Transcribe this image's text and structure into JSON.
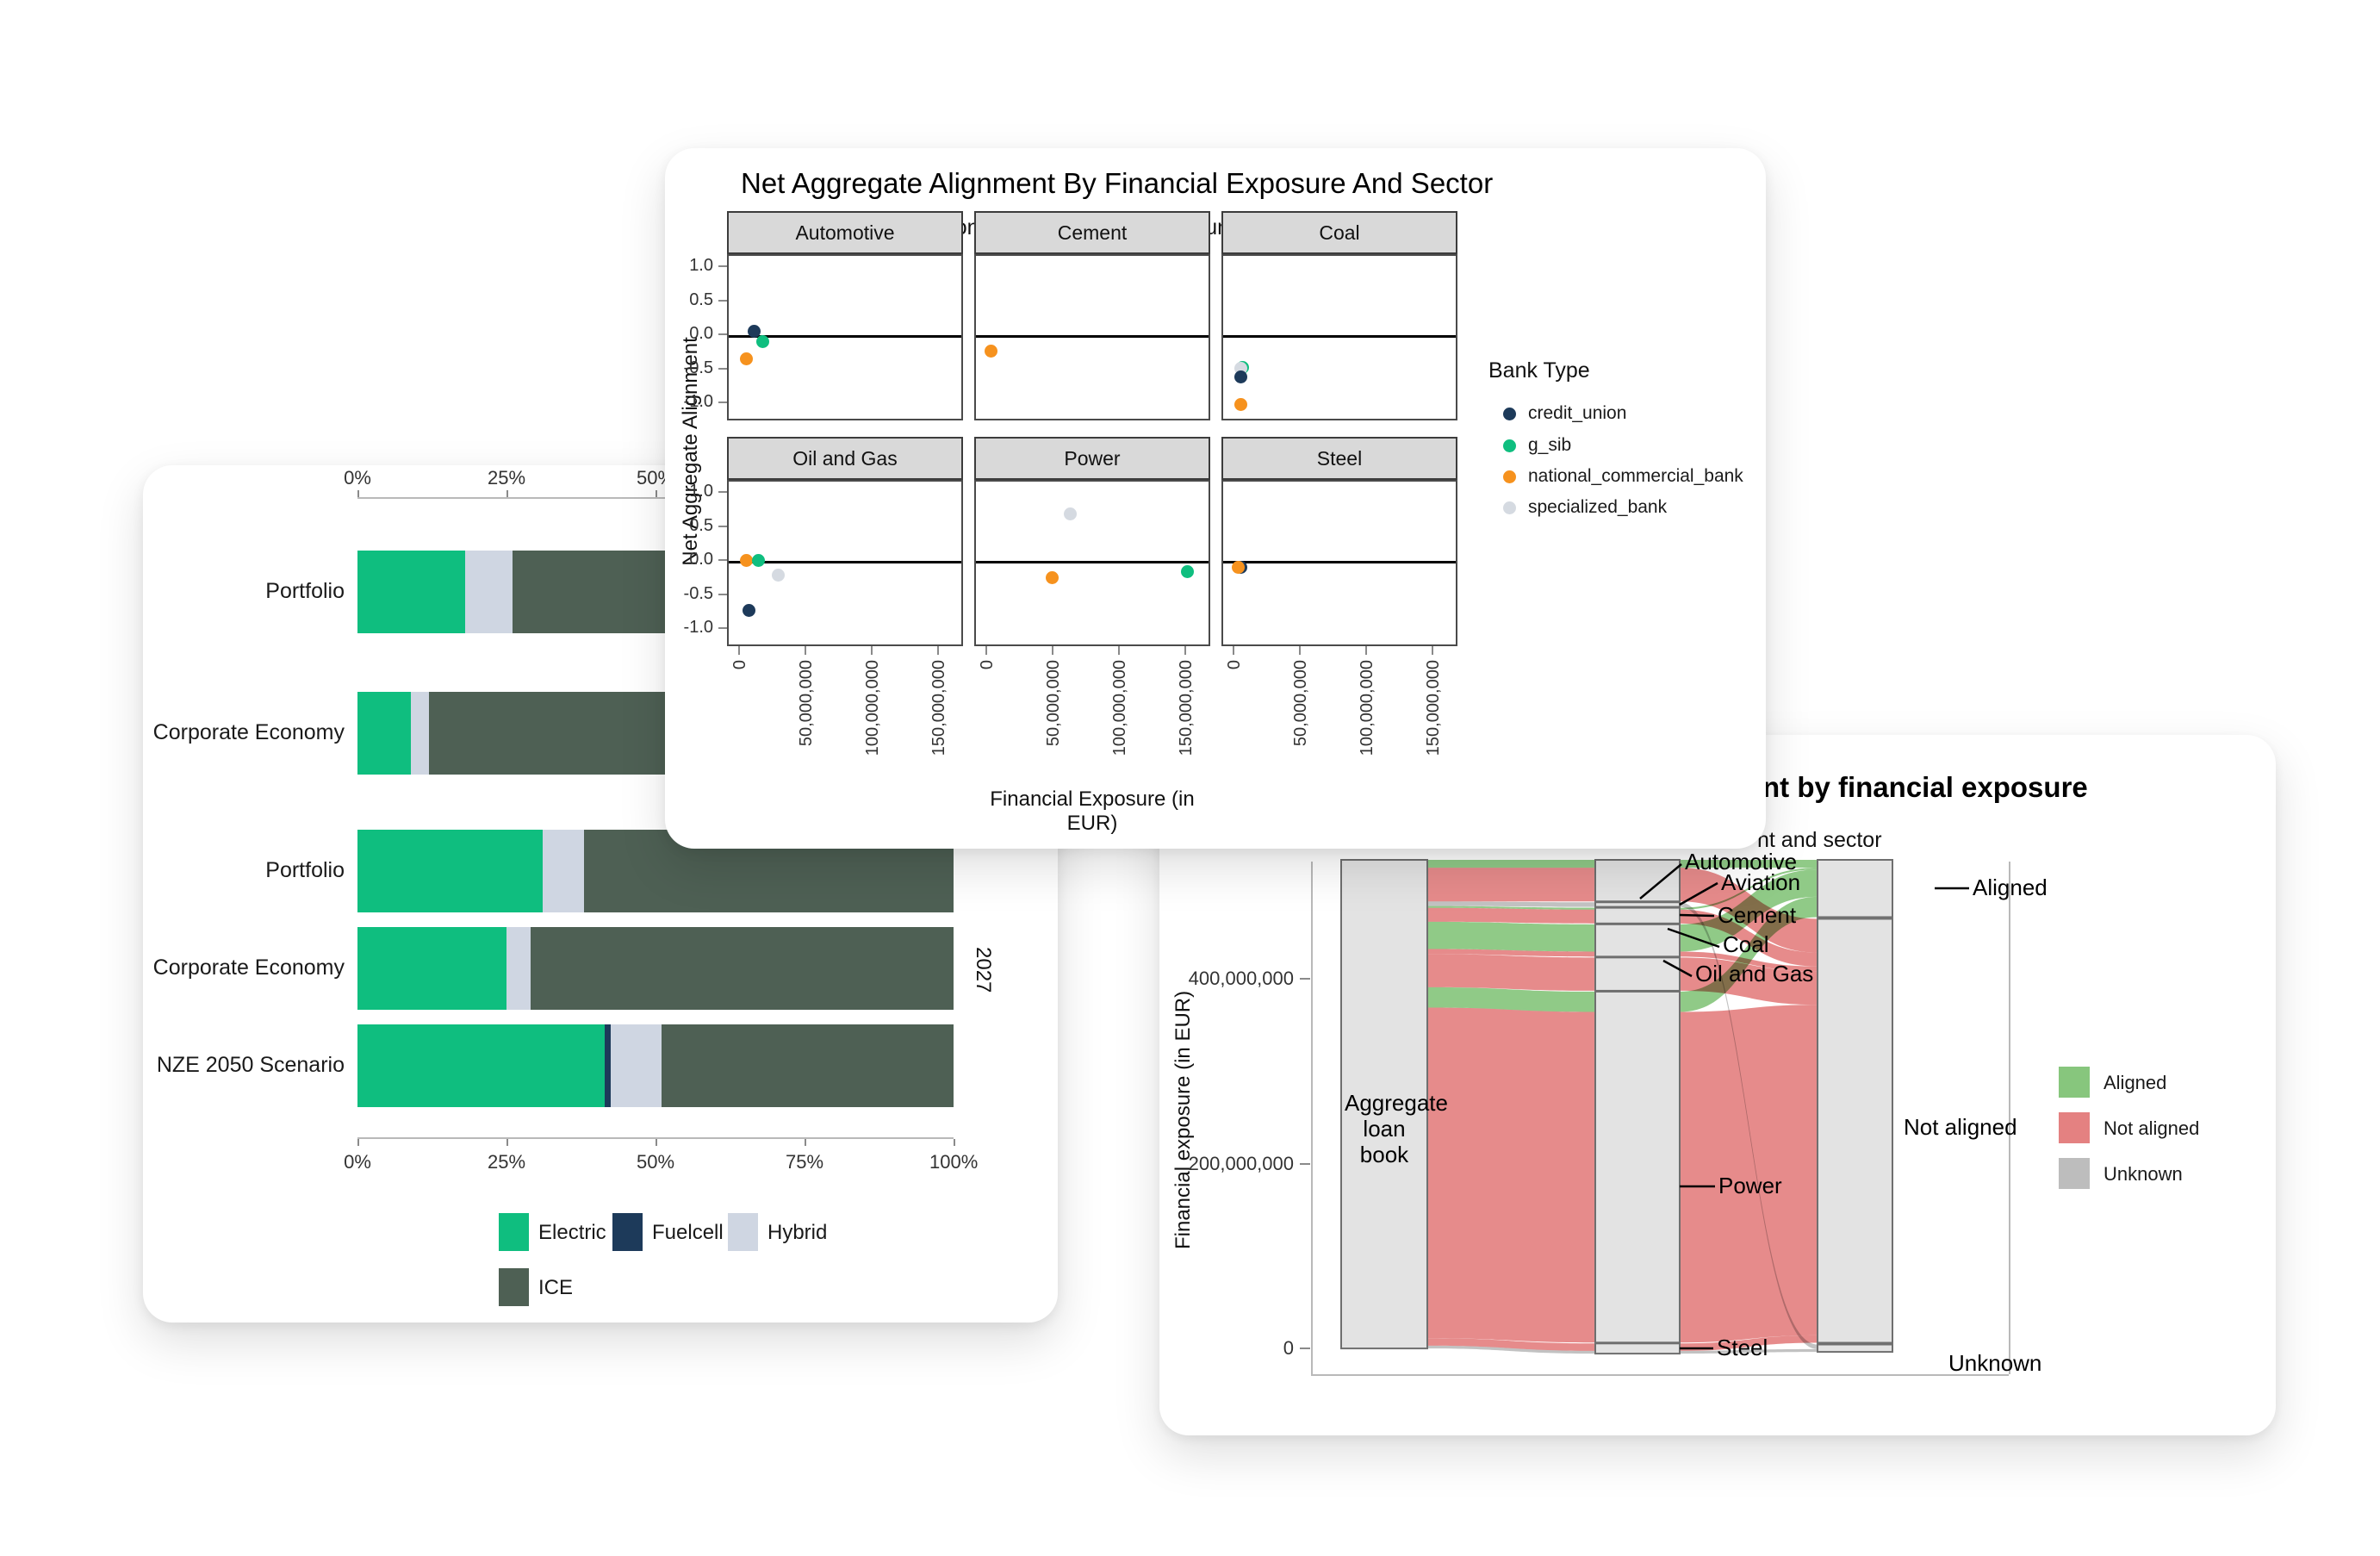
{
  "accent_colors": {
    "electric_green": "#0FBE7F",
    "fuelcell_navy": "#1D3A5A",
    "hybrid_gray": "#CFD6E2",
    "ice_darkgreen": "#4E6054",
    "orange": "#F6921E",
    "specialized_gray": "#D5DAE1",
    "sankey_green": "#87C67D",
    "sankey_red": "#E48181",
    "sankey_gray": "#BDBDBD",
    "node_fill": "#E3E3E3",
    "node_stroke": "#6F6F6F",
    "strip_bg": "#D9D9D9"
  },
  "chart_data": [
    {
      "type": "bar",
      "orientation": "horizontal-stacked",
      "x_ticks": [
        "0%",
        "25%",
        "50%",
        "75%",
        "100%"
      ],
      "xlim": [
        0,
        100
      ],
      "groups": [
        {
          "year": "",
          "rows": [
            {
              "label": "Portfolio",
              "segments": [
                {
                  "name": "Electric",
                  "value": 18
                },
                {
                  "name": "Hybrid",
                  "value": 8
                },
                {
                  "name": "ICE",
                  "value": 74
                }
              ]
            },
            {
              "label": "Corporate Economy",
              "segments": [
                {
                  "name": "Electric",
                  "value": 9
                },
                {
                  "name": "Hybrid",
                  "value": 3
                },
                {
                  "name": "ICE",
                  "value": 88
                }
              ]
            }
          ]
        },
        {
          "year": "2027",
          "rows": [
            {
              "label": "Portfolio",
              "segments": [
                {
                  "name": "Electric",
                  "value": 31
                },
                {
                  "name": "Hybrid",
                  "value": 7
                },
                {
                  "name": "ICE",
                  "value": 62
                }
              ]
            },
            {
              "label": "Corporate Economy",
              "segments": [
                {
                  "name": "Electric",
                  "value": 25
                },
                {
                  "name": "Hybrid",
                  "value": 4
                },
                {
                  "name": "ICE",
                  "value": 71
                }
              ]
            },
            {
              "label": "NZE 2050 Scenario",
              "segments": [
                {
                  "name": "Electric",
                  "value": 41.5
                },
                {
                  "name": "Fuelcell",
                  "value": 1
                },
                {
                  "name": "Hybrid",
                  "value": 8.5
                },
                {
                  "name": "ICE",
                  "value": 49
                }
              ]
            }
          ]
        }
      ],
      "legend": [
        {
          "label": "Electric",
          "color": "#0FBE7F"
        },
        {
          "label": "Fuelcell",
          "color": "#1D3A5A"
        },
        {
          "label": "Hybrid",
          "color": "#CFD6E2"
        },
        {
          "label": "ICE",
          "color": "#4E6054"
        }
      ]
    },
    {
      "type": "scatter",
      "title": "Net Aggregate Alignment By Financial Exposure And Sector",
      "subtitle": "Outliers are displayed on the lower and upper boundaries: -1 and 1.",
      "xlabel": "Financial Exposure (in EUR)",
      "ylabel": "Net Aggregate Alignment",
      "x_ticks": [
        "0",
        "50,000,000",
        "100,000,000",
        "150,000,000"
      ],
      "x_tick_values_millions": [
        0,
        50,
        100,
        150
      ],
      "y_ticks": [
        "1.0",
        "0.5",
        "0.0",
        "-0.5",
        "-1.0"
      ],
      "ylim": [
        -1,
        1
      ],
      "legend_title": "Bank Type",
      "legend": [
        {
          "label": "credit_union",
          "color": "#1D3A5A"
        },
        {
          "label": "g_sib",
          "color": "#0FBE7F"
        },
        {
          "label": "national_commercial_bank",
          "color": "#F6921E"
        },
        {
          "label": "specialized_bank",
          "color": "#D5DAE1"
        }
      ],
      "facets": [
        {
          "name": "Automotive",
          "points": [
            {
              "bank": "credit_union",
              "x_millions": 10,
              "y": 0.07
            },
            {
              "bank": "g_sib",
              "x_millions": 16,
              "y": -0.08
            },
            {
              "bank": "national_commercial_bank",
              "x_millions": 4,
              "y": -0.33
            }
          ]
        },
        {
          "name": "Cement",
          "points": [
            {
              "bank": "national_commercial_bank",
              "x_millions": 2,
              "y": -0.21
            }
          ]
        },
        {
          "name": "Coal",
          "points": [
            {
              "bank": "g_sib",
              "x_millions": 5,
              "y": -0.45
            },
            {
              "bank": "specialized_bank",
              "x_millions": 4,
              "y": -0.47
            },
            {
              "bank": "credit_union",
              "x_millions": 4,
              "y": -0.59
            },
            {
              "bank": "national_commercial_bank",
              "x_millions": 4,
              "y": -1.0
            }
          ]
        },
        {
          "name": "Oil and Gas",
          "points": [
            {
              "bank": "national_commercial_bank",
              "x_millions": 4,
              "y": 0.02
            },
            {
              "bank": "g_sib",
              "x_millions": 13,
              "y": 0.03
            },
            {
              "bank": "specialized_bank",
              "x_millions": 28,
              "y": -0.19
            },
            {
              "bank": "credit_union",
              "x_millions": 6,
              "y": -0.71
            }
          ]
        },
        {
          "name": "Power",
          "points": [
            {
              "bank": "specialized_bank",
              "x_millions": 62,
              "y": 0.71
            },
            {
              "bank": "national_commercial_bank",
              "x_millions": 48,
              "y": -0.23
            },
            {
              "bank": "g_sib",
              "x_millions": 150,
              "y": -0.14
            }
          ]
        },
        {
          "name": "Steel",
          "points": [
            {
              "bank": "credit_union",
              "x_millions": 4,
              "y": -0.08
            },
            {
              "bank": "national_commercial_bank",
              "x_millions": 2,
              "y": -0.08
            }
          ]
        }
      ]
    },
    {
      "type": "sankey",
      "title_visible_fragment": "nt by financial exposure",
      "subtitle_visible_fragment": "nt and sector",
      "ylabel": "Financial exposure (in EUR)",
      "y_ticks": [
        {
          "label": "400,000,000",
          "value": 400000000
        },
        {
          "label": "200,000,000",
          "value": 200000000
        },
        {
          "label": "0",
          "value": 0
        }
      ],
      "source_node": "Aggregate loan book",
      "sector_nodes": [
        "Automotive",
        "Aviation",
        "Cement",
        "Coal",
        "Oil and Gas",
        "Power",
        "Steel"
      ],
      "status_nodes": [
        "Aligned",
        "Not aligned",
        "Unknown"
      ],
      "flows": [
        {
          "sector": "Automotive",
          "status": "Aligned",
          "value": 8500000
        },
        {
          "sector": "Automotive",
          "status": "Not aligned",
          "value": 36500000
        },
        {
          "sector": "Aviation",
          "status": "Unknown",
          "value": 5000000
        },
        {
          "sector": "Cement",
          "status": "Aligned",
          "value": 2000000
        },
        {
          "sector": "Cement",
          "status": "Not aligned",
          "value": 15000000
        },
        {
          "sector": "Coal",
          "status": "Aligned",
          "value": 29500000
        },
        {
          "sector": "Coal",
          "status": "Not aligned",
          "value": 5500000
        },
        {
          "sector": "Oil and Gas",
          "status": "Not aligned",
          "value": 36000000
        },
        {
          "sector": "Power",
          "status": "Aligned",
          "value": 22000000
        },
        {
          "sector": "Power",
          "status": "Not aligned",
          "value": 358000000
        },
        {
          "sector": "Steel",
          "status": "Not aligned",
          "value": 8000000
        },
        {
          "sector": "Steel",
          "status": "Unknown",
          "value": 3000000
        }
      ],
      "legend": [
        {
          "label": "Aligned",
          "color": "#87C67D"
        },
        {
          "label": "Not aligned",
          "color": "#E48181"
        },
        {
          "label": "Unknown",
          "color": "#BDBDBD"
        }
      ]
    }
  ]
}
